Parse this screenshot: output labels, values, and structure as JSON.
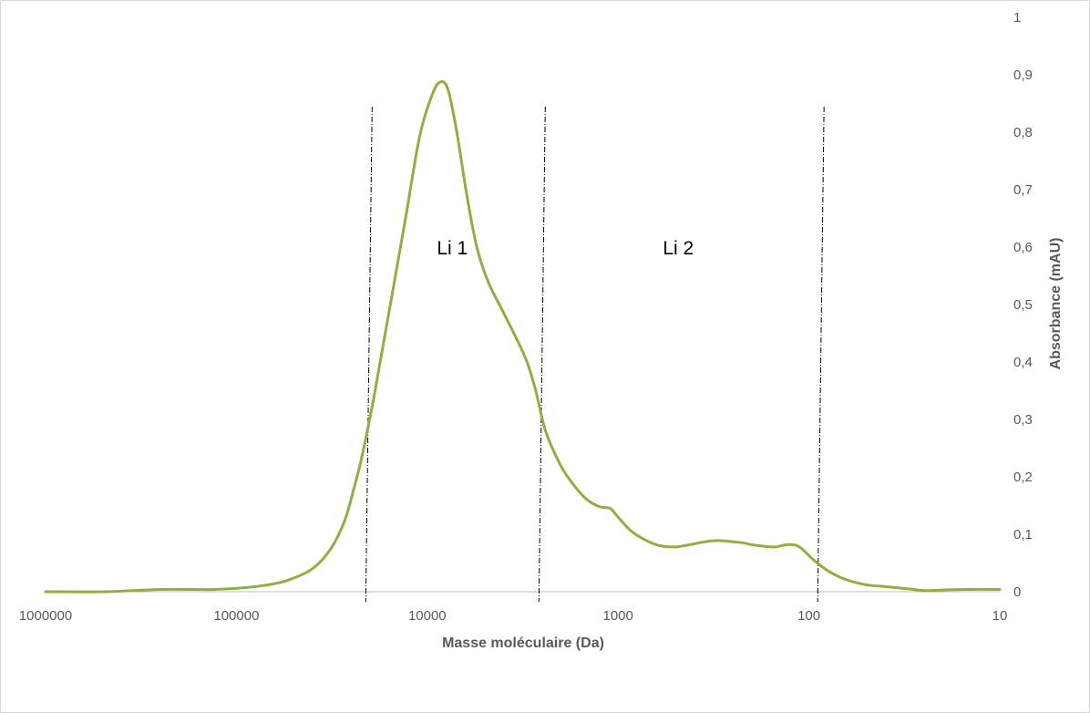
{
  "chart_data": {
    "type": "line",
    "xlabel": "Masse moléculaire (Da)",
    "ylabel": "Absorbance (mAU)",
    "x_scale": "log",
    "x_reversed": true,
    "xlim": [
      1000000,
      10
    ],
    "ylim": [
      0,
      1
    ],
    "x_ticks": [
      {
        "value": 1000000,
        "label": "1000000"
      },
      {
        "value": 100000,
        "label": "100000"
      },
      {
        "value": 10000,
        "label": "10000"
      },
      {
        "value": 1000,
        "label": "1000"
      },
      {
        "value": 100,
        "label": "100"
      },
      {
        "value": 10,
        "label": "10"
      }
    ],
    "y_ticks": [
      {
        "value": 0,
        "label": "0"
      },
      {
        "value": 0.1,
        "label": "0,1"
      },
      {
        "value": 0.2,
        "label": "0,2"
      },
      {
        "value": 0.3,
        "label": "0,3"
      },
      {
        "value": 0.4,
        "label": "0,4"
      },
      {
        "value": 0.5,
        "label": "0,5"
      },
      {
        "value": 0.6,
        "label": "0,6"
      },
      {
        "value": 0.7,
        "label": "0,7"
      },
      {
        "value": 0.8,
        "label": "0,8"
      },
      {
        "value": 0.9,
        "label": "0,9"
      },
      {
        "value": 1,
        "label": "1"
      }
    ],
    "grid": false,
    "legend": "none",
    "series": [
      {
        "color": "#8db03f",
        "points": [
          [
            1000000,
            0.0
          ],
          [
            500000,
            0.0
          ],
          [
            350000,
            0.002
          ],
          [
            250000,
            0.004
          ],
          [
            180000,
            0.004
          ],
          [
            130000,
            0.004
          ],
          [
            100000,
            0.006
          ],
          [
            75000,
            0.01
          ],
          [
            55000,
            0.019
          ],
          [
            40000,
            0.04
          ],
          [
            32000,
            0.075
          ],
          [
            27000,
            0.125
          ],
          [
            24000,
            0.185
          ],
          [
            22000,
            0.235
          ],
          [
            19000,
            0.34
          ],
          [
            16000,
            0.48
          ],
          [
            13000,
            0.65
          ],
          [
            11000,
            0.79
          ],
          [
            9500,
            0.862
          ],
          [
            8600,
            0.887
          ],
          [
            7800,
            0.875
          ],
          [
            7000,
            0.8
          ],
          [
            6200,
            0.69
          ],
          [
            5500,
            0.6
          ],
          [
            4800,
            0.54
          ],
          [
            4000,
            0.487
          ],
          [
            3400,
            0.44
          ],
          [
            3000,
            0.4
          ],
          [
            2700,
            0.35
          ],
          [
            2400,
            0.28
          ],
          [
            2000,
            0.22
          ],
          [
            1700,
            0.185
          ],
          [
            1450,
            0.16
          ],
          [
            1250,
            0.148
          ],
          [
            1100,
            0.145
          ],
          [
            1000,
            0.13
          ],
          [
            850,
            0.105
          ],
          [
            700,
            0.088
          ],
          [
            600,
            0.08
          ],
          [
            500,
            0.078
          ],
          [
            420,
            0.082
          ],
          [
            350,
            0.087
          ],
          [
            300,
            0.089
          ],
          [
            250,
            0.087
          ],
          [
            220,
            0.085
          ],
          [
            200,
            0.082
          ],
          [
            170,
            0.079
          ],
          [
            150,
            0.078
          ],
          [
            130,
            0.082
          ],
          [
            115,
            0.08
          ],
          [
            105,
            0.07
          ],
          [
            95,
            0.056
          ],
          [
            80,
            0.037
          ],
          [
            65,
            0.022
          ],
          [
            50,
            0.012
          ],
          [
            40,
            0.009
          ],
          [
            30,
            0.005
          ],
          [
            25,
            0.002
          ],
          [
            20,
            0.003
          ],
          [
            15,
            0.004
          ],
          [
            10,
            0.004
          ]
        ]
      }
    ],
    "regions": [
      {
        "label": "Li 1",
        "from": 21000,
        "to": 2600
      },
      {
        "label": "Li 2",
        "from": 2600,
        "to": 90
      }
    ]
  }
}
